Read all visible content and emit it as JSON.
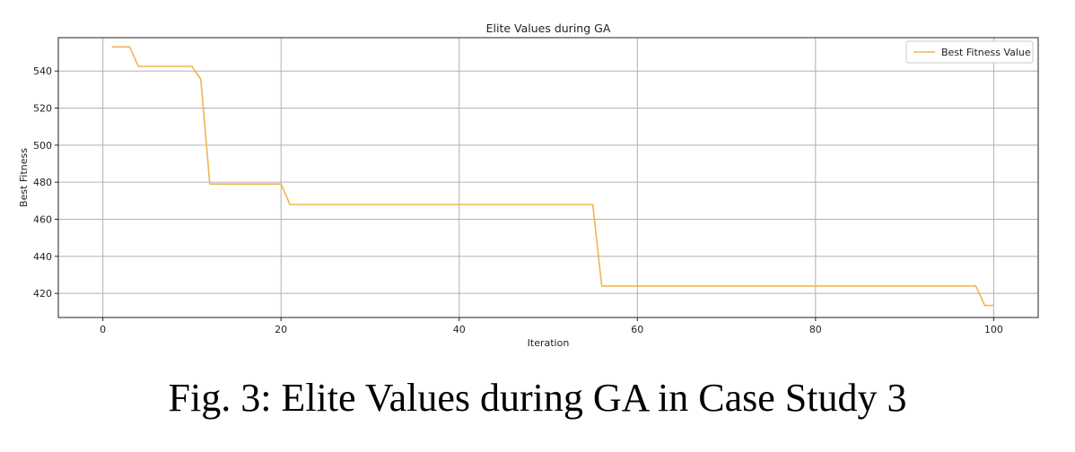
{
  "caption": "Fig. 3: Elite Values during GA in Case Study 3",
  "chart_data": {
    "type": "line",
    "title": "Elite Values during GA",
    "xlabel": "Iteration",
    "ylabel": "Best Fitness",
    "xlim": [
      -5,
      105
    ],
    "ylim": [
      407,
      558
    ],
    "xticks": [
      0,
      20,
      40,
      60,
      80,
      100
    ],
    "yticks": [
      420,
      440,
      460,
      480,
      500,
      520,
      540
    ],
    "grid": true,
    "legend_position": "top-right",
    "series": [
      {
        "name": "Best Fitness Value",
        "color": "#f0b550",
        "x": [
          1,
          3,
          4,
          10,
          11,
          12,
          20,
          21,
          55,
          56,
          98,
          99,
          100
        ],
        "y": [
          553,
          553,
          542.5,
          542.5,
          535.5,
          479,
          479,
          468,
          468,
          424,
          424,
          413.5,
          413.5
        ]
      }
    ]
  }
}
